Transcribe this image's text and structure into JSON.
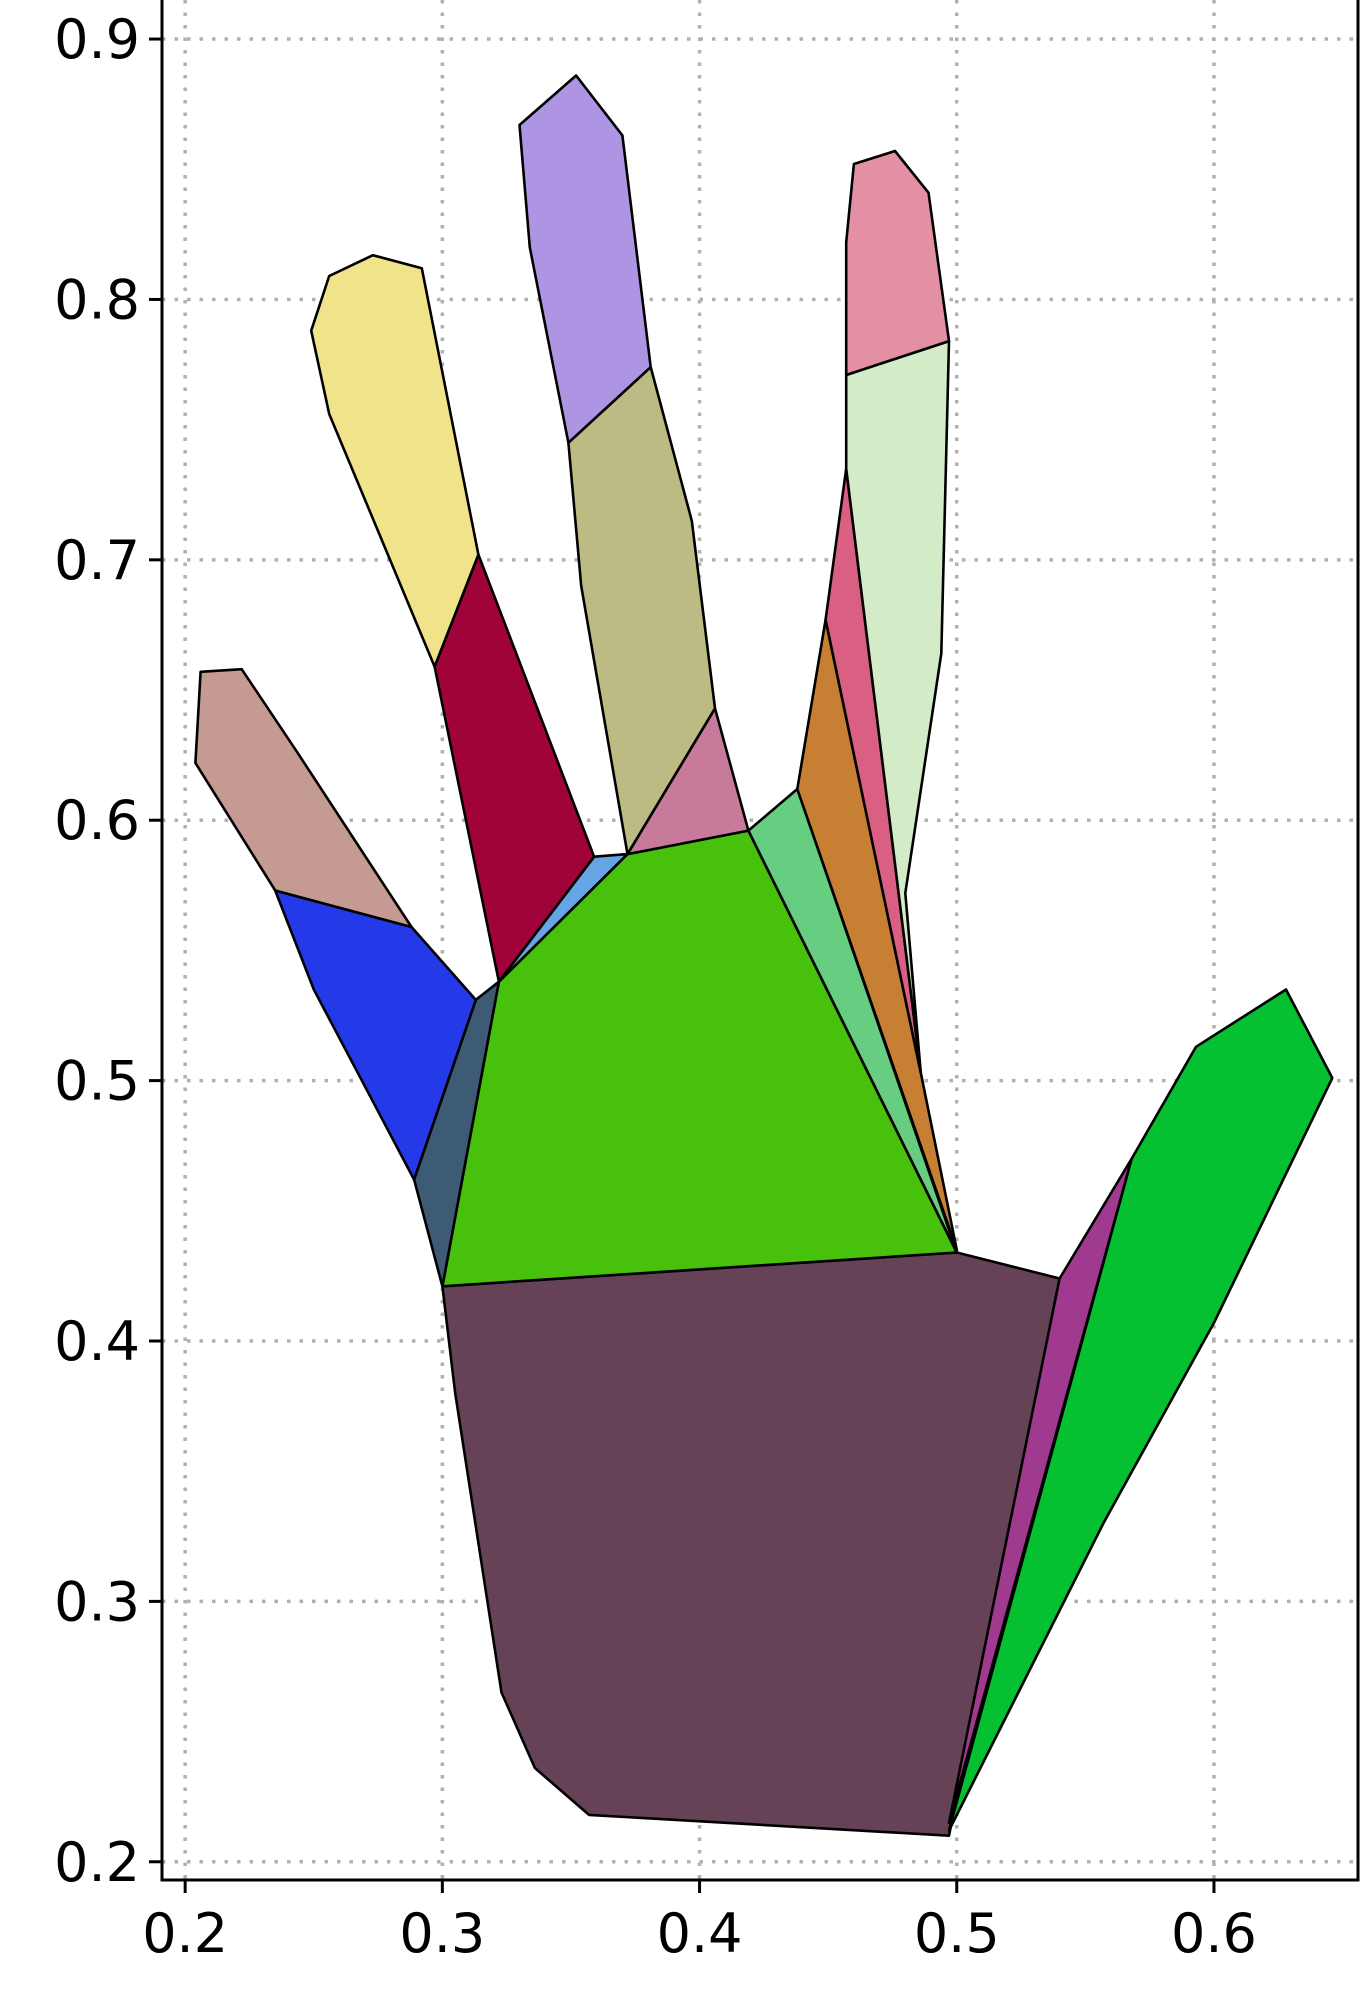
{
  "chart_data": {
    "type": "polygon",
    "title": "",
    "xlabel": "",
    "ylabel": "",
    "xlim": [
      0.191,
      0.656
    ],
    "ylim": [
      0.193,
      0.915
    ],
    "grid": true,
    "x_ticks": [
      0.2,
      0.3,
      0.4,
      0.5,
      0.6
    ],
    "y_ticks": [
      0.2,
      0.3,
      0.4,
      0.5,
      0.6,
      0.7,
      0.8,
      0.9
    ],
    "x_tick_labels": [
      "0.2",
      "0.3",
      "0.4",
      "0.5",
      "0.6"
    ],
    "y_tick_labels": [
      "0.2",
      "0.3",
      "0.4",
      "0.5",
      "0.6",
      "0.7",
      "0.8",
      "0.9"
    ],
    "polygons": [
      {
        "color": "#664257",
        "points": [
          [
            0.3,
            0.421
          ],
          [
            0.5,
            0.434
          ],
          [
            0.54,
            0.424
          ],
          [
            0.497,
            0.21
          ],
          [
            0.357,
            0.218
          ],
          [
            0.336,
            0.236
          ],
          [
            0.323,
            0.265
          ],
          [
            0.305,
            0.38
          ]
        ]
      },
      {
        "color": "#a03a8e",
        "points": [
          [
            0.54,
            0.424
          ],
          [
            0.568,
            0.47
          ],
          [
            0.497,
            0.215
          ]
        ]
      },
      {
        "color": "#05c030",
        "points": [
          [
            0.568,
            0.47
          ],
          [
            0.593,
            0.513
          ],
          [
            0.628,
            0.535
          ],
          [
            0.646,
            0.501
          ],
          [
            0.6,
            0.407
          ],
          [
            0.557,
            0.33
          ],
          [
            0.497,
            0.212
          ]
        ]
      },
      {
        "color": "#47c10b",
        "points": [
          [
            0.3,
            0.421
          ],
          [
            0.5,
            0.434
          ],
          [
            0.419,
            0.596
          ],
          [
            0.372,
            0.587
          ],
          [
            0.322,
            0.538
          ]
        ]
      },
      {
        "color": "#66cd81",
        "points": [
          [
            0.419,
            0.596
          ],
          [
            0.438,
            0.612
          ],
          [
            0.5,
            0.434
          ]
        ]
      },
      {
        "color": "#c77f34",
        "points": [
          [
            0.438,
            0.612
          ],
          [
            0.449,
            0.677
          ],
          [
            0.486,
            0.503
          ],
          [
            0.5,
            0.435
          ]
        ]
      },
      {
        "color": "#d95f83",
        "points": [
          [
            0.449,
            0.677
          ],
          [
            0.457,
            0.735
          ],
          [
            0.486,
            0.503
          ]
        ]
      },
      {
        "color": "#d3ebc7",
        "points": [
          [
            0.457,
            0.735
          ],
          [
            0.457,
            0.771
          ],
          [
            0.497,
            0.784
          ],
          [
            0.494,
            0.664
          ],
          [
            0.48,
            0.572
          ],
          [
            0.486,
            0.503
          ]
        ]
      },
      {
        "color": "#e38fa4",
        "points": [
          [
            0.457,
            0.771
          ],
          [
            0.457,
            0.822
          ],
          [
            0.46,
            0.852
          ],
          [
            0.476,
            0.857
          ],
          [
            0.489,
            0.841
          ],
          [
            0.497,
            0.784
          ]
        ]
      },
      {
        "color": "#c77a99",
        "points": [
          [
            0.372,
            0.587
          ],
          [
            0.419,
            0.596
          ],
          [
            0.406,
            0.643
          ]
        ]
      },
      {
        "color": "#bcbb83",
        "points": [
          [
            0.372,
            0.587
          ],
          [
            0.406,
            0.643
          ],
          [
            0.397,
            0.715
          ],
          [
            0.381,
            0.774
          ],
          [
            0.349,
            0.745
          ],
          [
            0.354,
            0.69
          ]
        ]
      },
      {
        "color": "#ae95e3",
        "points": [
          [
            0.349,
            0.745
          ],
          [
            0.381,
            0.774
          ],
          [
            0.37,
            0.863
          ],
          [
            0.352,
            0.886
          ],
          [
            0.33,
            0.867
          ],
          [
            0.334,
            0.82
          ]
        ]
      },
      {
        "color": "#66a5e3",
        "points": [
          [
            0.322,
            0.538
          ],
          [
            0.359,
            0.586
          ],
          [
            0.372,
            0.587
          ]
        ]
      },
      {
        "color": "#9f0339",
        "points": [
          [
            0.322,
            0.538
          ],
          [
            0.359,
            0.586
          ],
          [
            0.314,
            0.702
          ],
          [
            0.297,
            0.659
          ]
        ]
      },
      {
        "color": "#f1e38a",
        "points": [
          [
            0.297,
            0.659
          ],
          [
            0.314,
            0.702
          ],
          [
            0.292,
            0.812
          ],
          [
            0.273,
            0.817
          ],
          [
            0.256,
            0.809
          ],
          [
            0.249,
            0.788
          ],
          [
            0.256,
            0.756
          ]
        ]
      },
      {
        "color": "#3e5b76",
        "points": [
          [
            0.3,
            0.421
          ],
          [
            0.322,
            0.538
          ],
          [
            0.313,
            0.531
          ],
          [
            0.289,
            0.462
          ]
        ]
      },
      {
        "color": "#2439e8",
        "points": [
          [
            0.289,
            0.462
          ],
          [
            0.313,
            0.531
          ],
          [
            0.288,
            0.559
          ],
          [
            0.235,
            0.573
          ],
          [
            0.25,
            0.535
          ]
        ]
      },
      {
        "color": "#c59a92",
        "points": [
          [
            0.235,
            0.573
          ],
          [
            0.288,
            0.559
          ],
          [
            0.243,
            0.627
          ],
          [
            0.222,
            0.658
          ],
          [
            0.206,
            0.657
          ],
          [
            0.204,
            0.622
          ]
        ]
      }
    ]
  }
}
